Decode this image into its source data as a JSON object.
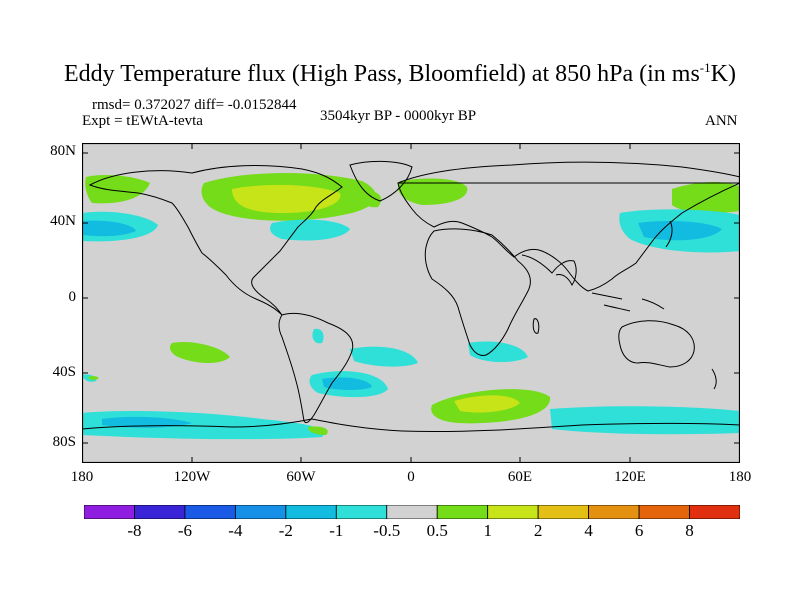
{
  "header": {
    "title_main": "Eddy Temperature flux (High Pass, Bloomfield) at 850 hPa (in ms",
    "title_sup": "-1",
    "title_end": "K)",
    "stats": "rmsd= 0.372027  diff= -0.0152844",
    "experiment": "Expt = tEWtA-tevta",
    "period": "3504kyr BP - 0000kyr BP",
    "season": "ANN"
  },
  "axes": {
    "y_ticks": [
      "80N",
      "40N",
      "0",
      "40S",
      "80S"
    ],
    "x_ticks": [
      "180",
      "120W",
      "60W",
      "0",
      "60E",
      "120E",
      "180"
    ]
  },
  "legend": {
    "labels": [
      "-8",
      "-6",
      "-4",
      "-2",
      "-1",
      "-0.5",
      "0.5",
      "1",
      "2",
      "4",
      "6",
      "8"
    ],
    "colors": [
      "#8f1ee0",
      "#3a24d8",
      "#1a5ae6",
      "#1690e6",
      "#12bce0",
      "#2ee0d8",
      "#d2d2d2",
      "#74dc18",
      "#c6e418",
      "#e4c016",
      "#e49010",
      "#e4640c",
      "#e03010"
    ]
  },
  "map": {
    "background": "#d2d2d2",
    "coast_color": "#000000"
  }
}
